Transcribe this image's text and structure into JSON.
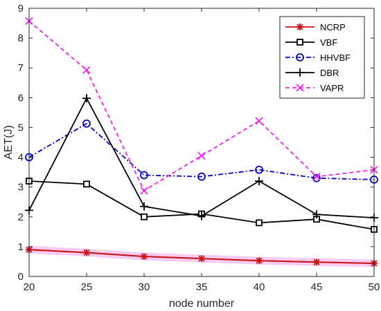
{
  "chart_data": {
    "type": "line",
    "xlabel": "node number",
    "ylabel": "AET(J)",
    "x": [
      20,
      25,
      30,
      35,
      40,
      45,
      50
    ],
    "xlim": [
      20,
      50
    ],
    "ylim": [
      0,
      9
    ],
    "xticks": [
      "20",
      "25",
      "30",
      "35",
      "40",
      "45",
      "50"
    ],
    "yticks": [
      "0",
      "1",
      "2",
      "3",
      "4",
      "5",
      "6",
      "7",
      "8",
      "9"
    ],
    "grid": false,
    "legend_position": "top-right",
    "series": [
      {
        "name": "NCRP",
        "color": "#cc1111",
        "marker": "asterisk",
        "dash": "solid",
        "glow": true,
        "values": [
          0.9,
          0.8,
          0.67,
          0.6,
          0.53,
          0.48,
          0.44
        ]
      },
      {
        "name": "VBF",
        "color": "#000000",
        "marker": "square",
        "dash": "solid",
        "values": [
          3.2,
          3.1,
          2.0,
          2.1,
          1.8,
          1.92,
          1.58
        ]
      },
      {
        "name": "HHVBF",
        "color": "#0000cc",
        "marker": "circle",
        "dash": "dashdot",
        "values": [
          4.0,
          5.13,
          3.4,
          3.35,
          3.58,
          3.3,
          3.25
        ]
      },
      {
        "name": "DBR",
        "color": "#000000",
        "marker": "plus",
        "dash": "solid",
        "values": [
          2.22,
          5.98,
          2.35,
          2.03,
          3.2,
          2.08,
          1.97
        ]
      },
      {
        "name": "VAPR",
        "color": "#ee22ee",
        "marker": "x",
        "dash": "dashed",
        "values": [
          8.57,
          6.93,
          2.88,
          4.05,
          5.22,
          3.35,
          3.58
        ]
      }
    ]
  }
}
